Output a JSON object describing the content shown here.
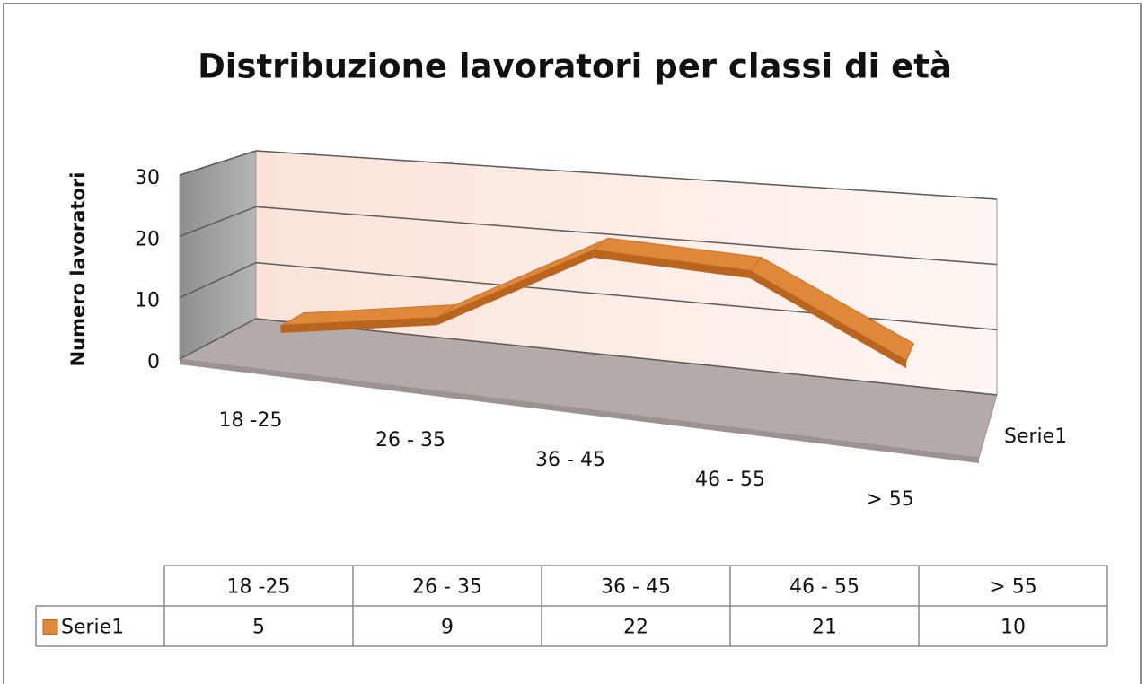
{
  "chart_data": {
    "type": "line",
    "title": "Distribuzione lavoratori per classi di età",
    "y_axis_label": "Numero lavoratori",
    "categories": [
      "18 -25",
      "26 - 35",
      "36 - 45",
      "46 - 55",
      "> 55"
    ],
    "series": [
      {
        "name": "Serie1",
        "color": "#e0883a",
        "values": [
          5,
          9,
          22,
          21,
          10
        ]
      }
    ],
    "ylim": [
      0,
      30
    ],
    "yticks": [
      0,
      10,
      20,
      30
    ],
    "grid": true,
    "data_table": true
  }
}
